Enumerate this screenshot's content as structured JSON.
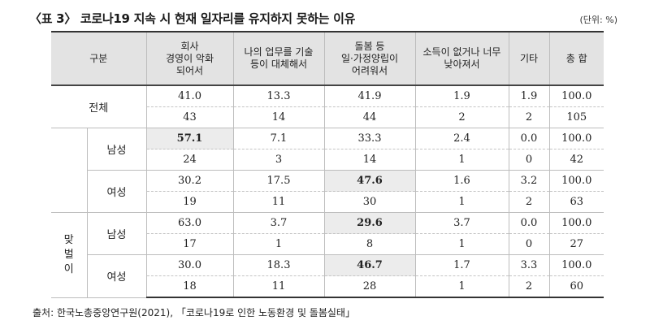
{
  "title": "〈표 3〉 코로나19 지속 시 현재 일자리를 유지하지 못하는 이유",
  "unit": "(단위: %)",
  "headers": {
    "group": "구분",
    "c1": [
      "회사",
      "경영이 악화",
      "되어서"
    ],
    "c2": [
      "나의 업무를 기술",
      "등이 대체해서"
    ],
    "c3": [
      "돌봄 등",
      "일·가정양립이",
      "어려워서"
    ],
    "c4": [
      "소득이 없거나 너무",
      "낮아져서"
    ],
    "c5": "기타",
    "c6": "총 합"
  },
  "groups": {
    "total": "전체",
    "dual": [
      "맞",
      "벌",
      "이"
    ],
    "male": "남성",
    "female": "여성"
  },
  "rows": [
    {
      "pct": [
        "41.0",
        "13.3",
        "41.9",
        "1.9",
        "1.9",
        "100.0"
      ],
      "n": [
        "43",
        "14",
        "44",
        "2",
        "2",
        "105"
      ]
    },
    {
      "pct": [
        "57.1",
        "7.1",
        "33.3",
        "2.4",
        "0.0",
        "100.0"
      ],
      "n": [
        "24",
        "3",
        "14",
        "1",
        "0",
        "42"
      ]
    },
    {
      "pct": [
        "30.2",
        "17.5",
        "47.6",
        "1.6",
        "3.2",
        "100.0"
      ],
      "n": [
        "19",
        "11",
        "30",
        "1",
        "2",
        "63"
      ]
    },
    {
      "pct": [
        "63.0",
        "3.7",
        "29.6",
        "3.7",
        "0.0",
        "100.0"
      ],
      "n": [
        "17",
        "1",
        "8",
        "1",
        "0",
        "27"
      ]
    },
    {
      "pct": [
        "30.0",
        "18.3",
        "46.7",
        "1.7",
        "3.3",
        "100.0"
      ],
      "n": [
        "18",
        "11",
        "28",
        "1",
        "2",
        "60"
      ]
    }
  ],
  "source": "출처: 한국노총중앙연구원(2021), 「코로나19로 인한 노동환경 및 돌봄실태」"
}
